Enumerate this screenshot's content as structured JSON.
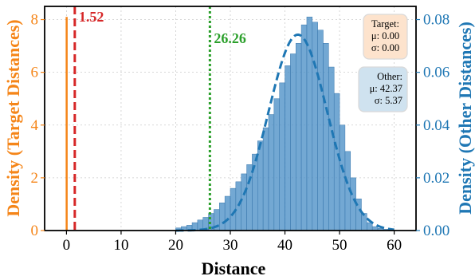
{
  "chart_data": {
    "type": "histogram",
    "xlabel": "Distance",
    "ylabel_left": "Density (Target Distances)",
    "ylabel_right": "Density (Other Distances)",
    "xlim": [
      -4,
      64
    ],
    "ylim_left": [
      0,
      8.5
    ],
    "ylim_right": [
      0,
      0.085
    ],
    "x_ticks": [
      0,
      10,
      20,
      30,
      40,
      50,
      60
    ],
    "y_ticks_left": [
      0,
      2,
      4,
      6,
      8
    ],
    "y_ticks_right": [
      0.0,
      0.02,
      0.04,
      0.06,
      0.08
    ],
    "grid": true,
    "target_series": {
      "color": "#f58518",
      "bins": [
        {
          "x0": -0.15,
          "x1": 0.15,
          "density": 8.1
        }
      ]
    },
    "other_series": {
      "color": "#4c8fc7",
      "bin_width": 1.0,
      "x_start": 20,
      "densities": [
        0.001,
        0.0015,
        0.002,
        0.003,
        0.004,
        0.005,
        0.0065,
        0.008,
        0.0105,
        0.013,
        0.016,
        0.0185,
        0.0215,
        0.025,
        0.029,
        0.034,
        0.039,
        0.044,
        0.05,
        0.056,
        0.0625,
        0.067,
        0.071,
        0.078,
        0.081,
        0.079,
        0.076,
        0.071,
        0.062,
        0.052,
        0.04,
        0.03,
        0.02,
        0.012,
        0.0065,
        0.003,
        0.0015,
        0.0008,
        0.0005,
        0.0003
      ]
    },
    "fit_curve": {
      "mean": 42.37,
      "std": 5.37,
      "color": "#1f77b4",
      "style": "dashed"
    },
    "reference_lines": [
      {
        "x": 1.52,
        "label": "1.52",
        "color": "#d62728",
        "style": "dashed"
      },
      {
        "x": 26.26,
        "label": "26.26",
        "color": "#2ca02c",
        "style": "dotted"
      }
    ],
    "annotations": [
      {
        "lines": [
          "Target:",
          "μ: 0.00",
          "σ: 0.00"
        ],
        "fill": "#fde3cd",
        "stroke": "#d9d9d9"
      },
      {
        "lines": [
          "Other:",
          "μ: 42.37",
          "σ: 5.37"
        ],
        "fill": "#cfe2ef",
        "stroke": "#d9d9d9"
      }
    ]
  }
}
